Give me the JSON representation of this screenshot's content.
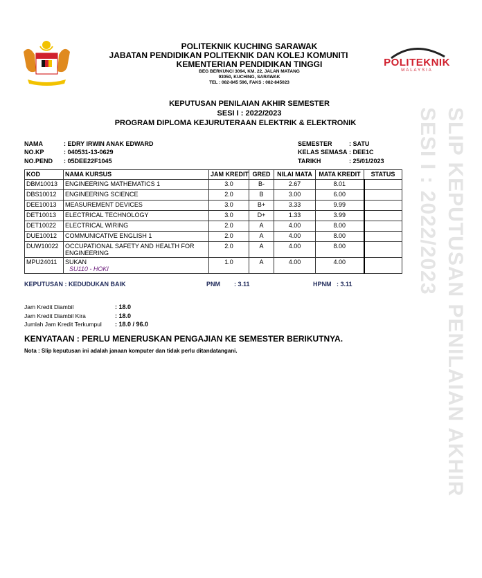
{
  "watermark": {
    "line1": "SLIP KEPUTUSAN PENILAIAN AKHIR",
    "line2": "SESI I : 2022/2023"
  },
  "header": {
    "institution": "POLITEKNIK KUCHING SARAWAK",
    "department": "JABATAN PENDIDIKAN POLITEKNIK DAN KOLEJ KOMUNITI",
    "ministry": "KEMENTERIAN PENDIDIKAN TINGGI",
    "address1": "BEG BERKUNCI 3094, KM. 22, JALAN MATANG",
    "address2": "93050, KUCHING, SARAWAK",
    "contact": "TEL : 082-845 596, FAKS : 082-845023",
    "logo_right": {
      "text": "POLITEKNIK",
      "subtext": "MALAYSIA",
      "color": "#d0202e"
    }
  },
  "title": {
    "line1": "KEPUTUSAN PENILAIAN AKHIR SEMESTER",
    "line2": "SESI I : 2022/2023",
    "line3": "PROGRAM DIPLOMA KEJURUTERAAN ELEKTRIK & ELEKTRONIK"
  },
  "student": {
    "nama_label": "NAMA",
    "nama": ": EDRY IRWIN ANAK EDWARD",
    "nokp_label": "NO.KP",
    "nokp": ": 040531-13-0629",
    "nopend_label": "NO.PEND",
    "nopend": ": 05DEE22F1045",
    "semester_label": "SEMESTER",
    "semester": ": SATU",
    "kelas_label": "KELAS SEMASA",
    "kelas": ": DEE1C",
    "tarikh_label": "TARIKH",
    "tarikh": ": 25/01/2023"
  },
  "table": {
    "headers": [
      "KOD",
      "NAMA KURSUS",
      "JAM KREDIT",
      "GRED",
      "NILAI MATA",
      "MATA KREDIT",
      "STATUS"
    ],
    "rows": [
      {
        "kod": "DBM10013",
        "nama": "ENGINEERING MATHEMATICS 1",
        "jam": "3.0",
        "gred": "B-",
        "nilai": "2.67",
        "mata": "8.01",
        "status": ""
      },
      {
        "kod": "DBS10012",
        "nama": "ENGINEERING SCIENCE",
        "jam": "2.0",
        "gred": "B",
        "nilai": "3.00",
        "mata": "6.00",
        "status": ""
      },
      {
        "kod": "DEE10013",
        "nama": "MEASUREMENT DEVICES",
        "jam": "3.0",
        "gred": "B+",
        "nilai": "3.33",
        "mata": "9.99",
        "status": ""
      },
      {
        "kod": "DET10013",
        "nama": "ELECTRICAL TECHNOLOGY",
        "jam": "3.0",
        "gred": "D+",
        "nilai": "1.33",
        "mata": "3.99",
        "status": ""
      },
      {
        "kod": "DET10022",
        "nama": "ELECTRICAL WIRING",
        "jam": "2.0",
        "gred": "A",
        "nilai": "4.00",
        "mata": "8.00",
        "status": ""
      },
      {
        "kod": "DUE10012",
        "nama": "COMMUNICATIVE ENGLISH 1",
        "jam": "2.0",
        "gred": "A",
        "nilai": "4.00",
        "mata": "8.00",
        "status": ""
      },
      {
        "kod": "DUW10022",
        "nama": "OCCUPATIONAL SAFETY AND HEALTH FOR ENGINEERING",
        "jam": "2.0",
        "gred": "A",
        "nilai": "4.00",
        "mata": "8.00",
        "status": ""
      },
      {
        "kod": "MPU24011",
        "nama": "SUKAN",
        "sub": "SU110 - HOKI",
        "jam": "1.0",
        "gred": "A",
        "nilai": "4.00",
        "mata": "4.00",
        "status": ""
      }
    ]
  },
  "result": {
    "keputusan": "KEPUTUSAN : KEDUDUKAN BAIK",
    "pnm_label": "PNM",
    "pnm": ": 3.11",
    "hpnm_label": "HPNM",
    "hpnm": ": 3.11"
  },
  "credits": {
    "diambil_label": "Jam Kredit Diambil",
    "diambil": ": 18.0",
    "kira_label": "Jam Kredit Diambil Kira",
    "kira": ": 18.0",
    "jumlah_label": "Jumlah Jam Kredit Terkumpul",
    "jumlah": ": 18.0 / 96.0"
  },
  "kenyataan": "KENYATAAN : PERLU MENERUSKAN PENGAJIAN KE SEMESTER BERIKUTNYA.",
  "nota": "Nota : Slip keputusan ini adalah janaan komputer dan tidak perlu ditandatangani."
}
